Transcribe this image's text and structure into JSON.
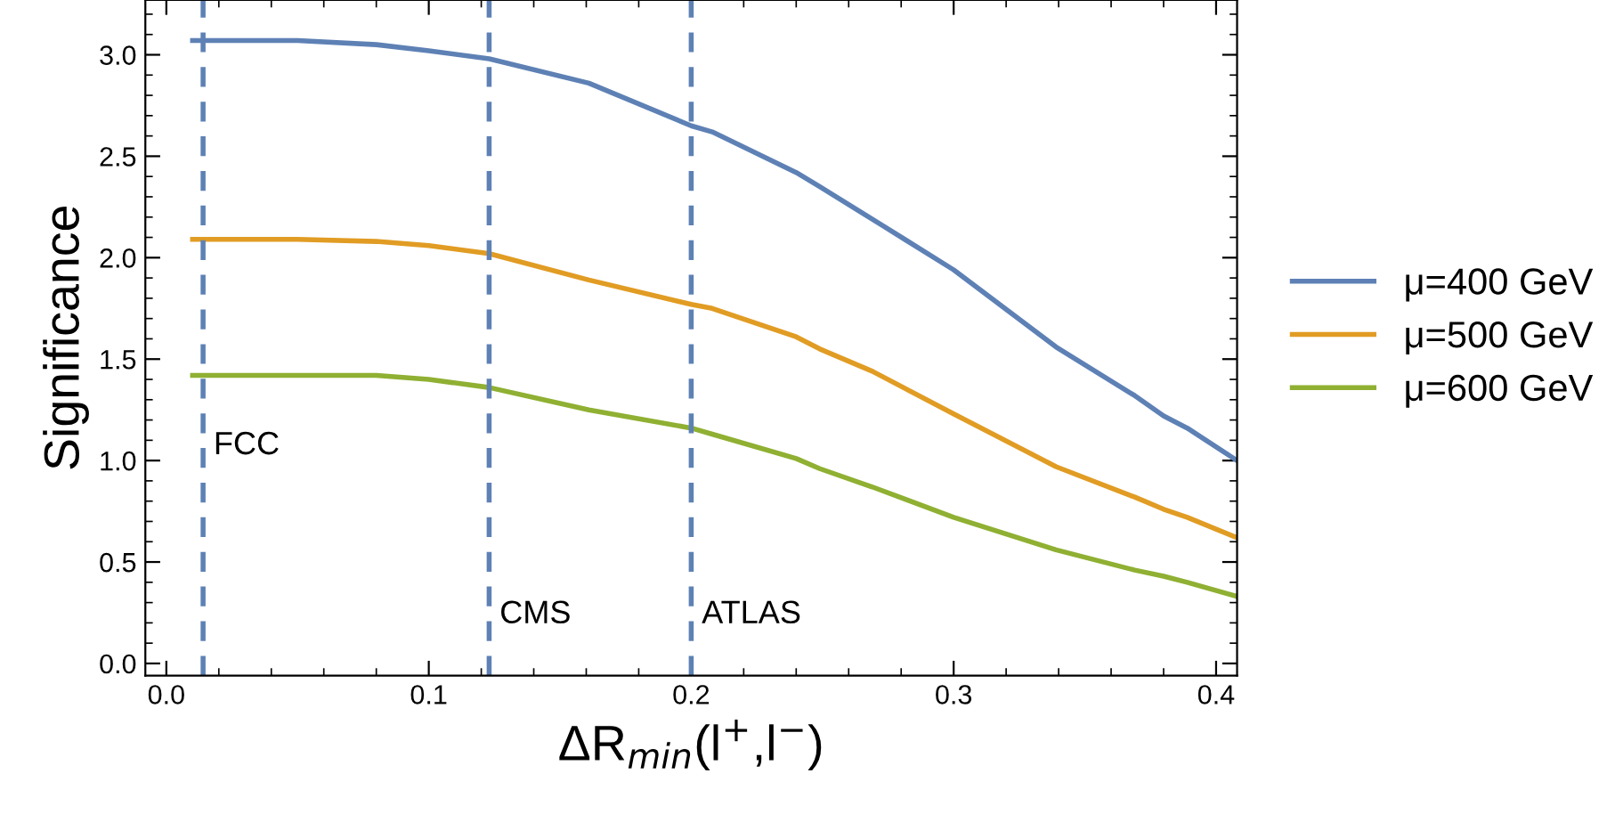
{
  "chart_data": {
    "type": "line",
    "xlabel": "ΔR$_{min}$(l$^{+}$,l$^{−}$)",
    "ylabel": "Significance",
    "xlim": [
      -0.008,
      0.408
    ],
    "ylim": [
      -0.06,
      3.27
    ],
    "xticks": [
      {
        "value": 0,
        "label": "0.0"
      },
      0.1,
      0.2,
      0.3,
      0.4
    ],
    "yticks": [
      {
        "value": 0,
        "label": "0.0"
      },
      0.5,
      {
        "value": 1,
        "label": "1.0"
      },
      1.5,
      {
        "value": 2,
        "label": "2.0"
      },
      2.5,
      {
        "value": 3,
        "label": "3.0"
      }
    ],
    "legend": "right",
    "grid": false,
    "line_style": "solid",
    "x": [
      0.01,
      0.05,
      0.08,
      0.1,
      0.123,
      0.161,
      0.2,
      0.208,
      0.24,
      0.249,
      0.269,
      0.3,
      0.339,
      0.369,
      0.38,
      0.389,
      0.408
    ],
    "series": [
      {
        "name": "μ=400 GeV",
        "color": "#5e81b5",
        "values": [
          3.07,
          3.07,
          3.05,
          3.02,
          2.98,
          2.86,
          2.65,
          2.62,
          2.42,
          2.35,
          2.19,
          1.94,
          1.56,
          1.32,
          1.22,
          1.16,
          1.0
        ]
      },
      {
        "name": "μ=500 GeV",
        "color": "#e19c24",
        "values": [
          2.09,
          2.09,
          2.08,
          2.06,
          2.02,
          1.89,
          1.77,
          1.75,
          1.61,
          1.55,
          1.44,
          1.23,
          0.97,
          0.82,
          0.76,
          0.72,
          0.62
        ]
      },
      {
        "name": "μ=600 GeV",
        "color": "#8fb032",
        "values": [
          1.42,
          1.42,
          1.42,
          1.4,
          1.36,
          1.25,
          1.16,
          1.13,
          1.01,
          0.96,
          0.87,
          0.72,
          0.56,
          0.46,
          0.43,
          0.4,
          0.33
        ]
      }
    ],
    "ref_lines": [
      {
        "axis": "x",
        "value": 0.014,
        "label": "FCC",
        "color": "#5e81b5",
        "line_style": "dashed"
      },
      {
        "axis": "x",
        "value": 0.123,
        "label": "CMS",
        "color": "#5e81b5",
        "line_style": "dashed"
      },
      {
        "axis": "x",
        "value": 0.2,
        "label": "ATLAS",
        "color": "#5e81b5",
        "line_style": "dashed"
      }
    ]
  }
}
